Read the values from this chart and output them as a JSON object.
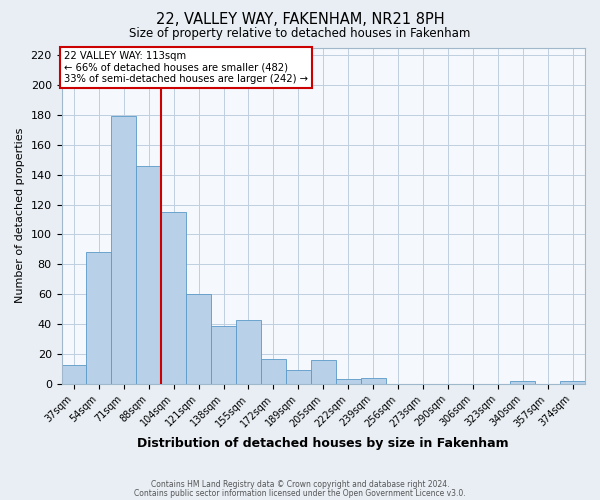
{
  "title": "22, VALLEY WAY, FAKENHAM, NR21 8PH",
  "subtitle": "Size of property relative to detached houses in Fakenham",
  "xlabel": "Distribution of detached houses by size in Fakenham",
  "ylabel": "Number of detached properties",
  "bin_labels": [
    "37sqm",
    "54sqm",
    "71sqm",
    "88sqm",
    "104sqm",
    "121sqm",
    "138sqm",
    "155sqm",
    "172sqm",
    "189sqm",
    "205sqm",
    "222sqm",
    "239sqm",
    "256sqm",
    "273sqm",
    "290sqm",
    "306sqm",
    "323sqm",
    "340sqm",
    "357sqm",
    "374sqm"
  ],
  "bar_heights": [
    13,
    88,
    179,
    146,
    115,
    60,
    39,
    43,
    17,
    9,
    16,
    3,
    4,
    0,
    0,
    0,
    0,
    0,
    2,
    0,
    2
  ],
  "bar_color": "#b8d0e8",
  "bar_edge_color": "#5a9ac8",
  "vline_x_idx": 4,
  "vline_color": "#cc0000",
  "annotation_text": "22 VALLEY WAY: 113sqm\n← 66% of detached houses are smaller (482)\n33% of semi-detached houses are larger (242) →",
  "annotation_box_color": "#ffffff",
  "annotation_box_edge": "#cc0000",
  "ylim": [
    0,
    225
  ],
  "yticks": [
    0,
    20,
    40,
    60,
    80,
    100,
    120,
    140,
    160,
    180,
    200,
    220
  ],
  "footer1": "Contains HM Land Registry data © Crown copyright and database right 2024.",
  "footer2": "Contains public sector information licensed under the Open Government Licence v3.0.",
  "bg_color": "#e8eef4",
  "plot_bg_color": "#f5f8fc",
  "grid_color": "#c0cfe0"
}
